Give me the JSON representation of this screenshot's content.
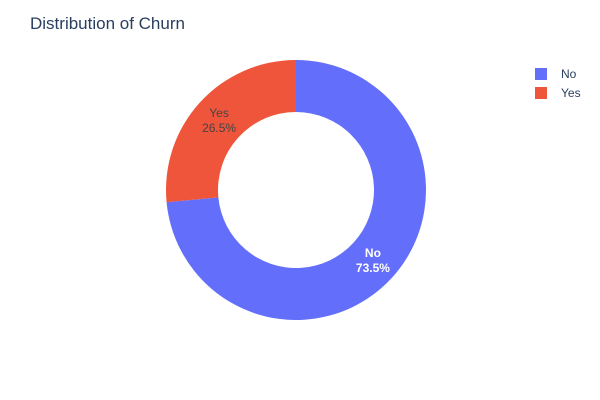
{
  "chart_data": {
    "type": "pie",
    "title": "Distribution of Churn",
    "hole": 0.6,
    "legend_position": "top-right",
    "slices": [
      {
        "label": "No",
        "value": 73.5,
        "percent_text": "73.5%",
        "color": "#636efa",
        "text_color": "#ffffff"
      },
      {
        "label": "Yes",
        "value": 26.5,
        "percent_text": "26.5%",
        "color": "#ef553b",
        "text_color": "#444444"
      }
    ]
  }
}
